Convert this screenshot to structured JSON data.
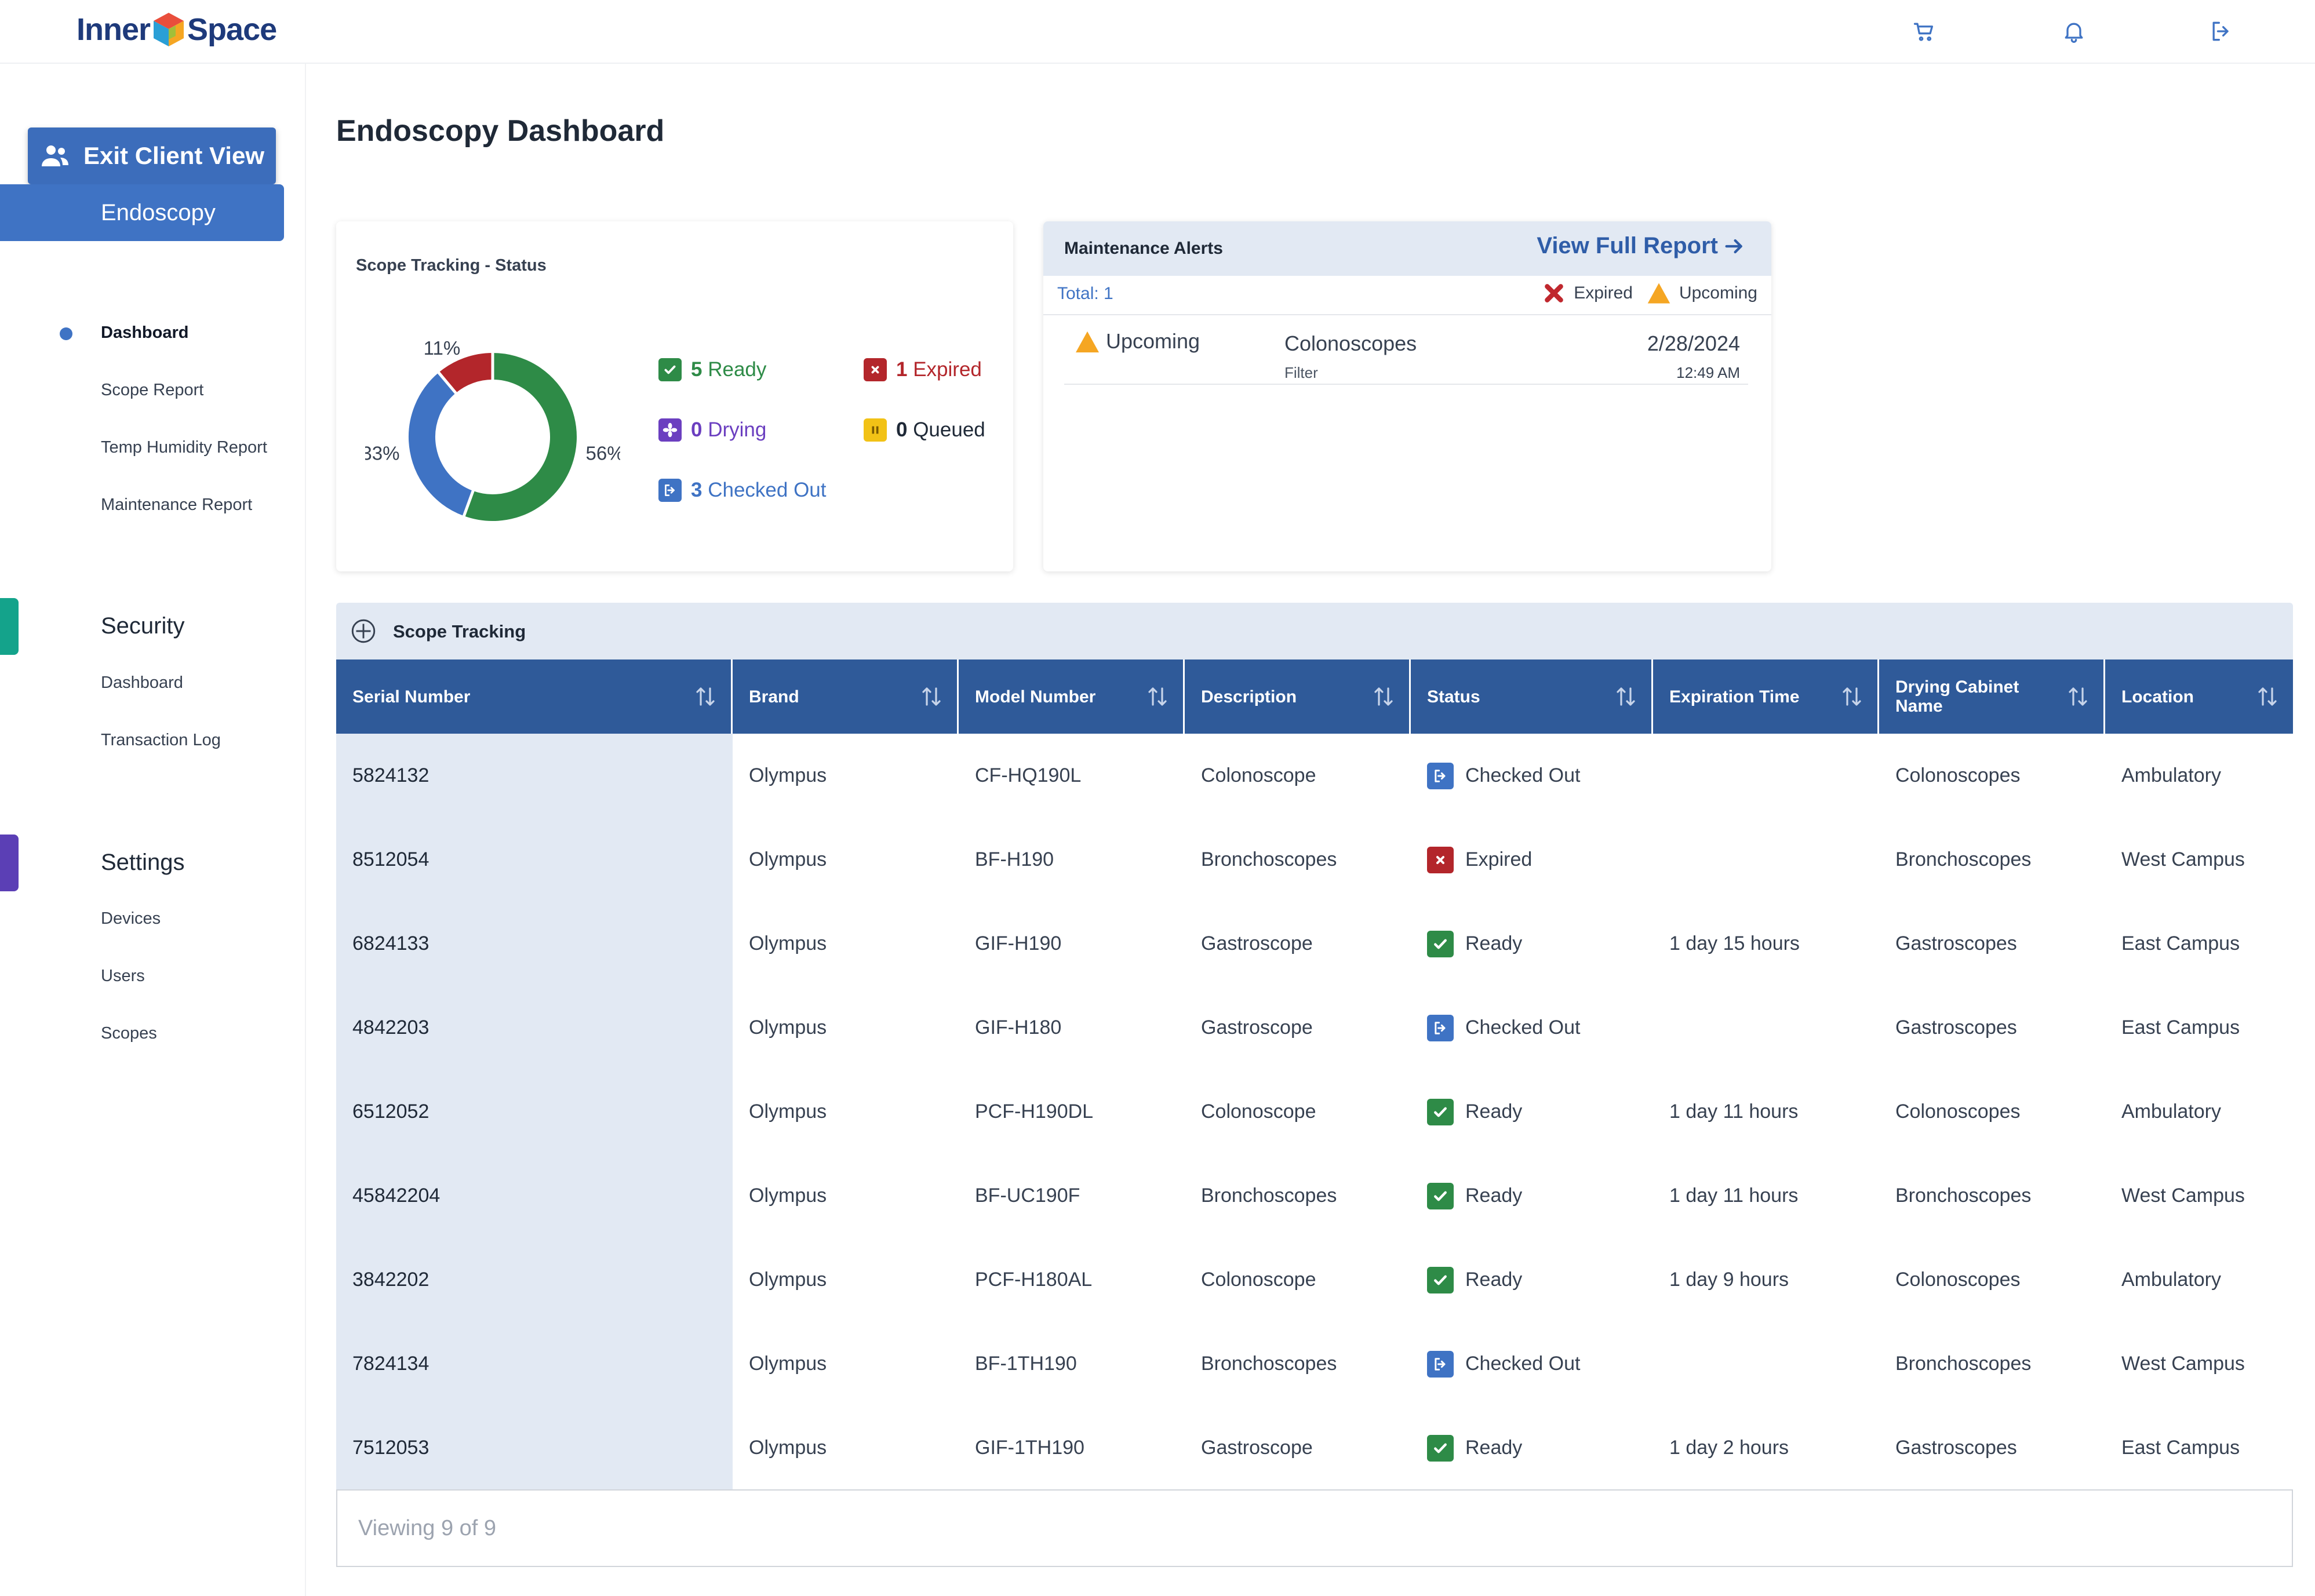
{
  "app": {
    "logo_left": "Inner",
    "logo_right": "Space"
  },
  "header_icons": [
    "cart-icon",
    "bell-icon",
    "logout-icon"
  ],
  "sidebar": {
    "exit_label": "Exit Client View",
    "sections": [
      {
        "title": "Endoscopy",
        "items": [
          "Dashboard",
          "Scope Report",
          "Temp Humidity Report",
          "Maintenance Report"
        ]
      },
      {
        "title": "Security",
        "items": [
          "Dashboard",
          "Transaction Log"
        ]
      },
      {
        "title": "Settings",
        "items": [
          "Devices",
          "Users",
          "Scopes"
        ]
      }
    ],
    "tab_colors": {
      "security": "#14a38b",
      "settings": "#5b3fb5"
    }
  },
  "page": {
    "title": "Endoscopy Dashboard"
  },
  "status_card": {
    "title": "Scope Tracking - Status",
    "legend": [
      {
        "count": "5",
        "label": "Ready",
        "color": "#2e8b47"
      },
      {
        "count": "1",
        "label": "Expired",
        "color": "#b3262b"
      },
      {
        "count": "0",
        "label": "Drying",
        "color": "#6b3fc0"
      },
      {
        "count": "0",
        "label": "Queued",
        "color": "#1f2937"
      },
      {
        "count": "3",
        "label": "Checked Out",
        "color": "#3f73c4"
      }
    ]
  },
  "chart_data": {
    "type": "pie",
    "title": "Scope Tracking - Status",
    "slices": [
      {
        "value": 5,
        "percent_label": "56%",
        "color": "#2e8b47"
      },
      {
        "value": 3,
        "percent_label": "33%",
        "color": "#3f73c4"
      },
      {
        "value": 1,
        "percent_label": "11%",
        "color": "#b3262b"
      }
    ],
    "donut": true
  },
  "maintenance": {
    "title": "Maintenance Alerts",
    "view_full_report": "View Full Report",
    "total": "Total: 1",
    "legend_expired": "Expired",
    "legend_upcoming": "Upcoming",
    "rows": [
      {
        "status": "Upcoming",
        "name": "Colonoscopes",
        "sub": "Filter",
        "date": "2/28/2024",
        "time": "12:49 AM"
      }
    ]
  },
  "table": {
    "title": "Scope Tracking",
    "columns": [
      "Serial Number",
      "Brand",
      "Model Number",
      "Description",
      "Status",
      "Expiration Time",
      "Drying Cabinet Name",
      "Location"
    ],
    "rows": [
      [
        "5824132",
        "Olympus",
        "CF-HQ190L",
        "Colonoscope",
        "Checked Out",
        "",
        "Colonoscopes",
        "Ambulatory"
      ],
      [
        "8512054",
        "Olympus",
        "BF-H190",
        "Bronchoscopes",
        "Expired",
        "",
        "Bronchoscopes",
        "West Campus"
      ],
      [
        "6824133",
        "Olympus",
        "GIF-H190",
        "Gastroscope",
        "Ready",
        "1 day 15 hours",
        "Gastroscopes",
        "East Campus"
      ],
      [
        "4842203",
        "Olympus",
        "GIF-H180",
        "Gastroscope",
        "Checked Out",
        "",
        "Gastroscopes",
        "East Campus"
      ],
      [
        "6512052",
        "Olympus",
        "PCF-H190DL",
        "Colonoscope",
        "Ready",
        "1 day 11 hours",
        "Colonoscopes",
        "Ambulatory"
      ],
      [
        "45842204",
        "Olympus",
        "BF-UC190F",
        "Bronchoscopes",
        "Ready",
        "1 day 11 hours",
        "Bronchoscopes",
        "West Campus"
      ],
      [
        "3842202",
        "Olympus",
        "PCF-H180AL",
        "Colonoscope",
        "Ready",
        "1 day 9 hours",
        "Colonoscopes",
        "Ambulatory"
      ],
      [
        "7824134",
        "Olympus",
        "BF-1TH190",
        "Bronchoscopes",
        "Checked Out",
        "",
        "Bronchoscopes",
        "West Campus"
      ],
      [
        "7512053",
        "Olympus",
        "GIF-1TH190",
        "Gastroscope",
        "Ready",
        "1 day 2 hours",
        "Gastroscopes",
        "East Campus"
      ]
    ],
    "footer": "Viewing 9 of 9"
  }
}
